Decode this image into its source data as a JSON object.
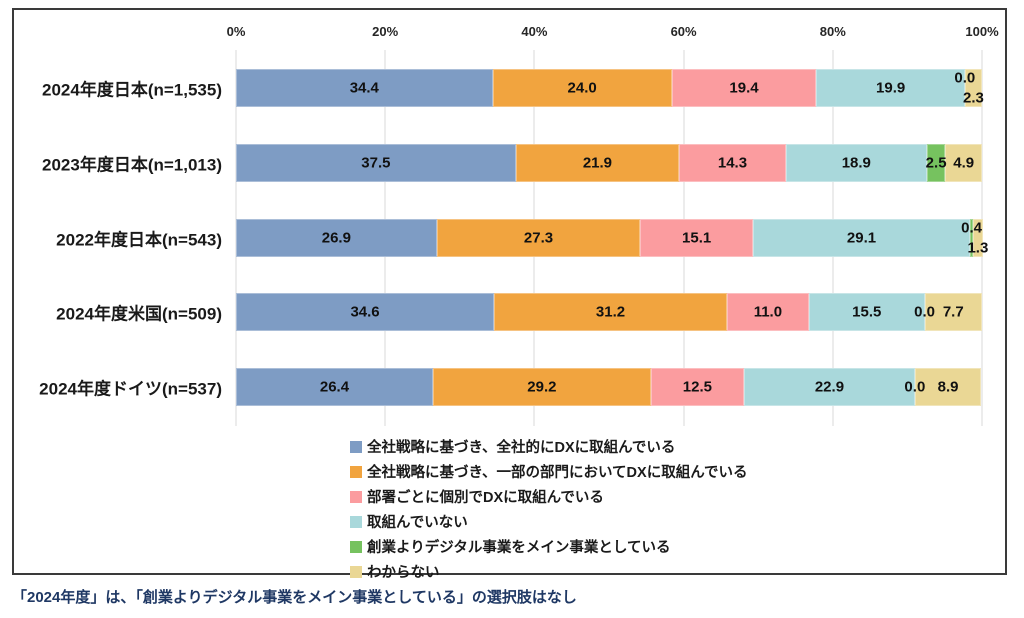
{
  "chart_data": {
    "type": "bar",
    "orientation": "horizontal-stacked",
    "title": "",
    "xlabel": "",
    "ylabel": "",
    "xlim": [
      0,
      100
    ],
    "x_ticks": [
      "0%",
      "20%",
      "40%",
      "60%",
      "80%",
      "100%"
    ],
    "grid": true,
    "legend_position": "bottom",
    "value_label_format": "0.0",
    "categories": [
      "2024年度日本(n=1,535)",
      "2023年度日本(n=1,013)",
      "2022年度日本(n=543)",
      "2024年度米国(n=509)",
      "2024年度ドイツ(n=537)"
    ],
    "series": [
      {
        "name": "全社戦略に基づき、全社的にDXに取組んでいる",
        "color": "#7E9CC4",
        "values": [
          34.4,
          37.5,
          26.9,
          34.6,
          26.4
        ]
      },
      {
        "name": "全社戦略に基づき、一部の部門においてDXに取組んでいる",
        "color": "#F1A43F",
        "values": [
          24.0,
          21.9,
          27.3,
          31.2,
          29.2
        ]
      },
      {
        "name": "部署ごとに個別でDXに取組んでいる",
        "color": "#FB9C9F",
        "values": [
          19.4,
          14.3,
          15.1,
          11.0,
          12.5
        ]
      },
      {
        "name": "取組んでいない",
        "color": "#A9D8DB",
        "values": [
          19.9,
          18.9,
          29.1,
          15.5,
          22.9
        ]
      },
      {
        "name": "創業よりデジタル事業をメイン事業としている",
        "color": "#76C25F",
        "values": [
          0.0,
          2.5,
          0.4,
          0.0,
          0.0
        ]
      },
      {
        "name": "わからない",
        "color": "#EAD795",
        "values": [
          2.3,
          4.9,
          1.3,
          7.7,
          8.9
        ]
      }
    ]
  },
  "footnote": "「2024年度」は、「創業よりデジタル事業をメイン事業としている」の選択肢はなし",
  "colors": {
    "grid": "#D9D9D9",
    "frame_border": "#3A3A3A",
    "footnote_text": "#1F3864",
    "label_text": "#111111"
  }
}
